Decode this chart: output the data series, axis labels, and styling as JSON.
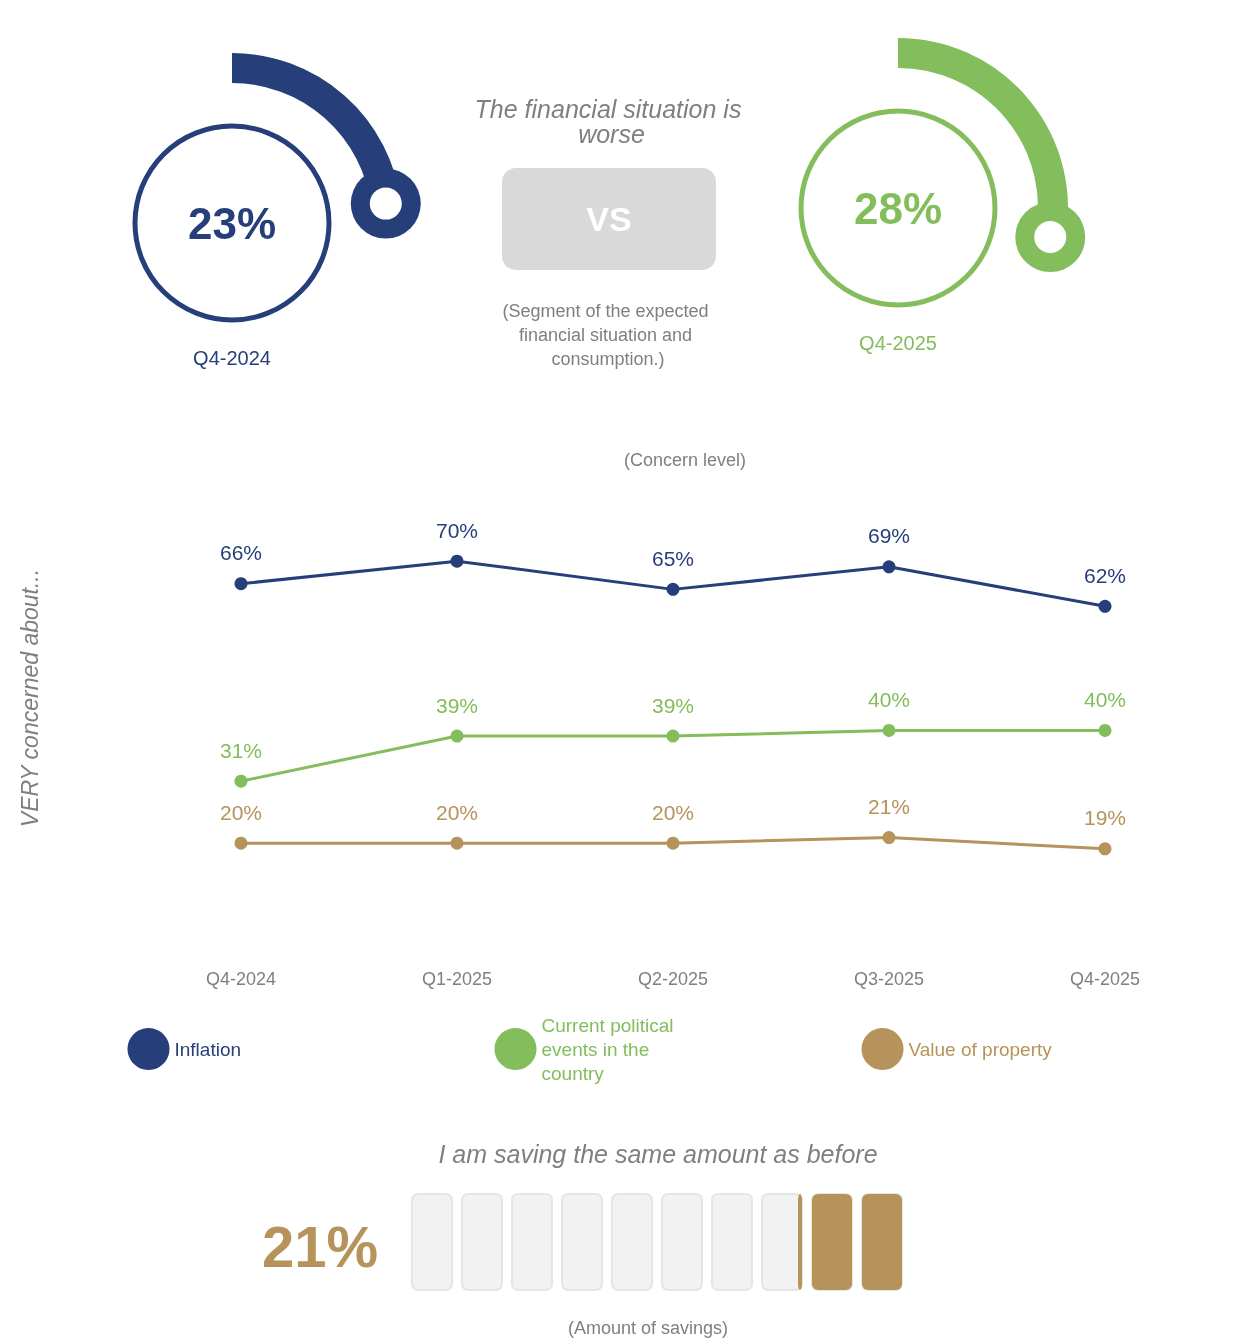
{
  "chart_data": [
    {
      "type": "other",
      "title": "The financial situation is worse",
      "categories": [
        "Q4-2024",
        "Q4-2025"
      ],
      "values": [
        23,
        28
      ],
      "value_labels": [
        "23%",
        "28%"
      ],
      "colors": [
        "#263f7a",
        "#84bd5c"
      ],
      "annotations": [
        "VS",
        "(Segment of the expected financial situation and consumption.)"
      ]
    },
    {
      "type": "line",
      "title": "(Concern level)",
      "ylabel": "VERY concerned about...",
      "categories": [
        "Q4-2024",
        "Q1-2025",
        "Q2-2025",
        "Q3-2025",
        "Q4-2025"
      ],
      "marker": "circle",
      "legend": "bottom",
      "series": [
        {
          "name": "Inflation",
          "color": "#263f7a",
          "values": [
            66,
            70,
            65,
            69,
            62
          ],
          "value_labels": [
            "66%",
            "70%",
            "65%",
            "69%",
            "62%"
          ]
        },
        {
          "name": "Current political events in the country",
          "color": "#84bd5c",
          "values": [
            31,
            39,
            39,
            40,
            40
          ],
          "value_labels": [
            "31%",
            "39%",
            "39%",
            "40%",
            "40%"
          ]
        },
        {
          "name": "Value of property",
          "color": "#b5935a",
          "values": [
            20,
            20,
            20,
            21,
            19
          ],
          "value_labels": [
            "20%",
            "20%",
            "20%",
            "21%",
            "19%"
          ]
        }
      ]
    },
    {
      "type": "other",
      "title": "I am saving the same amount as before",
      "values": [
        21
      ],
      "value_labels": [
        "21%"
      ],
      "colors": [
        "#b5935a"
      ],
      "annotations": [
        "(Amount of savings)"
      ]
    }
  ]
}
